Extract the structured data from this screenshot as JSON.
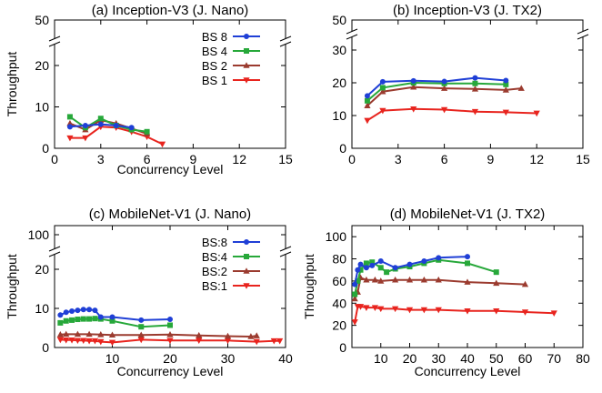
{
  "colors": {
    "bs8": "#1f3fd6",
    "bs4": "#27a83a",
    "bs2": "#9b3b2f",
    "bs1": "#e8241e"
  },
  "chart_data": [
    {
      "id": "a",
      "type": "line",
      "title": "(a) Inception-V3 (J. Nano)",
      "xlabel": "Concurrency Level",
      "ylabel": "Throughput",
      "xlim": [
        0,
        15
      ],
      "xticks": [
        "0",
        "3",
        "6",
        "9",
        "12",
        "15"
      ],
      "ylim": [
        0,
        50
      ],
      "yticks": [
        "0",
        "10",
        "20",
        "50"
      ],
      "y_break": [
        25,
        45
      ],
      "grid": false,
      "legend": "top-right",
      "series": [
        {
          "name": "BS 8",
          "marker": "circle",
          "color": "#1f3fd6",
          "x": [
            1,
            2,
            3,
            4,
            5
          ],
          "y": [
            5.2,
            5.5,
            5.8,
            5.5,
            5.0
          ]
        },
        {
          "name": "BS 4",
          "marker": "square",
          "color": "#27a83a",
          "x": [
            1,
            2,
            3,
            4,
            5,
            6
          ],
          "y": [
            7.6,
            5.0,
            7.2,
            5.5,
            4.5,
            4.0
          ]
        },
        {
          "name": "BS 2",
          "marker": "triangle-up",
          "color": "#9b3b2f",
          "x": [
            1,
            2,
            3,
            4,
            5,
            6
          ],
          "y": [
            6.0,
            4.5,
            6.8,
            6.0,
            4.8,
            3.5
          ]
        },
        {
          "name": "BS 1",
          "marker": "triangle-down",
          "color": "#e8241e",
          "x": [
            1,
            2,
            3,
            4,
            5,
            6,
            7
          ],
          "y": [
            2.5,
            2.5,
            5.2,
            5.0,
            4.0,
            2.8,
            1.0
          ]
        }
      ]
    },
    {
      "id": "b",
      "type": "line",
      "title": "(b) Inception-V3 (J. TX2)",
      "xlabel": "",
      "ylabel": "",
      "xlim": [
        0,
        15
      ],
      "xticks": [
        "0",
        "3",
        "6",
        "9",
        "12",
        "15"
      ],
      "ylim": [
        0,
        50
      ],
      "yticks": [
        "0",
        "10",
        "20",
        "30",
        "50"
      ],
      "y_break": [
        35,
        45
      ],
      "grid": false,
      "legend": "none",
      "series": [
        {
          "name": "",
          "marker": "circle",
          "color": "#1f3fd6",
          "x": [
            1,
            2,
            4,
            6,
            8,
            10
          ],
          "y": [
            16.0,
            20.3,
            20.6,
            20.4,
            21.5,
            20.7
          ]
        },
        {
          "name": "",
          "marker": "square",
          "color": "#27a83a",
          "x": [
            1,
            2,
            4,
            6,
            8,
            10
          ],
          "y": [
            14.5,
            18.5,
            20.0,
            19.8,
            19.8,
            19.5
          ]
        },
        {
          "name": "",
          "marker": "triangle-up",
          "color": "#9b3b2f",
          "x": [
            1,
            2,
            4,
            6,
            8,
            10,
            11
          ],
          "y": [
            13.0,
            17.3,
            18.7,
            18.3,
            18.1,
            17.8,
            18.3
          ]
        },
        {
          "name": "",
          "marker": "triangle-down",
          "color": "#e8241e",
          "x": [
            1,
            2,
            4,
            6,
            8,
            10,
            12
          ],
          "y": [
            8.5,
            11.5,
            12.0,
            11.8,
            11.2,
            11.0,
            10.7
          ]
        }
      ]
    },
    {
      "id": "c",
      "type": "line",
      "title": "(c) MobileNet-V1 (J. Nano)",
      "xlabel": "Concurrency Level",
      "ylabel": "Throughput",
      "xlim": [
        0,
        40
      ],
      "xticks": [
        "10",
        "20",
        "30",
        "40"
      ],
      "ylim": [
        0,
        100
      ],
      "yticks": [
        "0",
        "10",
        "20",
        "100"
      ],
      "y_break": [
        25,
        95
      ],
      "grid": false,
      "legend": "top-right",
      "series": [
        {
          "name": "BS:8",
          "marker": "circle",
          "color": "#1f3fd6",
          "x": [
            1,
            2,
            3,
            4,
            5,
            6,
            7,
            8,
            10,
            15,
            20
          ],
          "y": [
            8.3,
            9.0,
            9.3,
            9.5,
            9.7,
            9.7,
            9.5,
            7.8,
            7.8,
            7.0,
            7.2
          ]
        },
        {
          "name": "BS:4",
          "marker": "square",
          "color": "#27a83a",
          "x": [
            1,
            2,
            3,
            4,
            5,
            6,
            7,
            8,
            10,
            15,
            20
          ],
          "y": [
            6.3,
            6.8,
            7.0,
            7.2,
            7.3,
            7.3,
            7.4,
            7.3,
            6.8,
            5.3,
            5.7
          ]
        },
        {
          "name": "BS:2",
          "marker": "triangle-up",
          "color": "#9b3b2f",
          "x": [
            1,
            2,
            4,
            6,
            8,
            10,
            15,
            20,
            25,
            30,
            34,
            35
          ],
          "y": [
            3.3,
            3.4,
            3.4,
            3.4,
            3.3,
            3.2,
            3.2,
            3.3,
            3.1,
            2.9,
            2.8,
            3.0
          ]
        },
        {
          "name": "BS:1",
          "marker": "triangle-down",
          "color": "#e8241e",
          "x": [
            1,
            2,
            3,
            4,
            5,
            6,
            7,
            8,
            10,
            15,
            20,
            25,
            30,
            35,
            38,
            39
          ],
          "y": [
            2.0,
            1.9,
            1.9,
            1.8,
            1.8,
            1.7,
            1.7,
            1.5,
            1.3,
            2.0,
            1.8,
            1.8,
            1.8,
            1.5,
            1.7,
            1.7
          ]
        }
      ]
    },
    {
      "id": "d",
      "type": "line",
      "title": "(d) MobileNet-V1 (J. TX2)",
      "xlabel": "Concurrency Level",
      "ylabel": "Throughput",
      "xlim": [
        0,
        80
      ],
      "xticks": [
        "10",
        "20",
        "30",
        "40",
        "50",
        "60",
        "70",
        "80"
      ],
      "ylim": [
        0,
        110
      ],
      "yticks": [
        "0",
        "20",
        "40",
        "60",
        "80",
        "100"
      ],
      "grid": false,
      "legend": "none",
      "series": [
        {
          "name": "",
          "marker": "circle",
          "color": "#1f3fd6",
          "x": [
            1,
            2,
            3,
            5,
            7,
            10,
            15,
            20,
            25,
            30,
            40
          ],
          "y": [
            57,
            70,
            75,
            72,
            74,
            78,
            72,
            75,
            78,
            81,
            82
          ]
        },
        {
          "name": "",
          "marker": "square",
          "color": "#27a83a",
          "x": [
            1,
            2,
            3,
            5,
            7,
            10,
            12,
            15,
            20,
            25,
            30,
            40,
            50
          ],
          "y": [
            48,
            60,
            70,
            76,
            77,
            72,
            68,
            71,
            73,
            76,
            79,
            76,
            68
          ]
        },
        {
          "name": "",
          "marker": "triangle-up",
          "color": "#9b3b2f",
          "x": [
            1,
            2,
            3,
            5,
            8,
            10,
            15,
            20,
            25,
            30,
            40,
            50,
            60
          ],
          "y": [
            44,
            50,
            63,
            61,
            61,
            60,
            61,
            61,
            61,
            61,
            59,
            58,
            57
          ]
        },
        {
          "name": "",
          "marker": "triangle-down",
          "color": "#e8241e",
          "x": [
            1,
            2,
            3,
            5,
            8,
            10,
            15,
            20,
            25,
            30,
            40,
            50,
            60,
            70
          ],
          "y": [
            23,
            37,
            37,
            36,
            36,
            35,
            35,
            34,
            34,
            34,
            33,
            33,
            32,
            31
          ]
        }
      ]
    }
  ]
}
